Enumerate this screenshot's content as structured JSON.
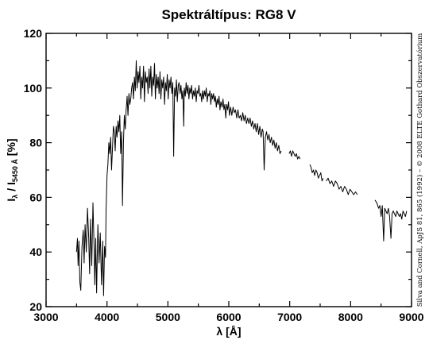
{
  "chart_data": {
    "type": "line",
    "title": "Spektráltípus: RG8 V",
    "xlabel": {
      "main": "λ [",
      "unit": "Å",
      "close": "]"
    },
    "ylabel": {
      "base": "I",
      "sub_lambda": "λ",
      "sep": " / I",
      "sub_ref": "5450 Å",
      "unit": " [%]"
    },
    "xlim": [
      3000,
      9000
    ],
    "ylim": [
      20,
      120
    ],
    "x_ticks": [
      3000,
      4000,
      5000,
      6000,
      7000,
      8000,
      9000
    ],
    "y_ticks": [
      20,
      40,
      60,
      80,
      100,
      120
    ],
    "x_minor_step": 500,
    "y_minor_step": 10,
    "grid": false,
    "credit": "Silva and Cornell, ApJS 81, 865 (1992) – © 2008 ELTE Gothard Obszervatórium",
    "series": [
      {
        "color": "#000000",
        "segments": [
          {
            "x": [
              3500,
              3515,
              3525,
              3540,
              3555,
              3570,
              3590,
              3610,
              3625,
              3640,
              3660,
              3680,
              3700,
              3715,
              3730,
              3750,
              3770,
              3790,
              3800,
              3815,
              3830,
              3850,
              3870,
              3890,
              3910,
              3930,
              3945,
              3960,
              3975,
              3985,
              4000,
              4015,
              4030,
              4045,
              4060,
              4075,
              4090,
              4105,
              4120,
              4135,
              4150,
              4165,
              4180,
              4195,
              4210,
              4225,
              4240,
              4255,
              4270,
              4285,
              4300,
              4315,
              4330,
              4345,
              4360,
              4375,
              4390,
              4405,
              4420,
              4435,
              4450,
              4465,
              4480,
              4495,
              4510,
              4525,
              4540,
              4555,
              4570,
              4585,
              4600,
              4615,
              4630,
              4645,
              4660,
              4675,
              4690,
              4705,
              4720,
              4735,
              4750,
              4765,
              4780,
              4795,
              4810,
              4825,
              4840,
              4855,
              4870,
              4885,
              4900,
              4915,
              4930,
              4945,
              4960,
              4975,
              4990,
              5005,
              5020,
              5035,
              5050,
              5065,
              5080,
              5095,
              5110,
              5125,
              5140,
              5155,
              5170,
              5183,
              5200,
              5215,
              5230,
              5245,
              5260,
              5270,
              5285,
              5300,
              5315,
              5330,
              5345,
              5360,
              5375,
              5390,
              5405,
              5420,
              5435,
              5450,
              5465,
              5480,
              5495,
              5510,
              5525,
              5540,
              5555,
              5570,
              5585,
              5600,
              5615,
              5630,
              5645,
              5660,
              5675,
              5690,
              5705,
              5720,
              5735,
              5750,
              5765,
              5780,
              5795,
              5810,
              5825,
              5840,
              5855,
              5870,
              5890,
              5905,
              5920,
              5935,
              5950,
              5965,
              5980,
              5995,
              6010,
              6030,
              6050,
              6070,
              6090,
              6110,
              6130,
              6150,
              6170,
              6190,
              6210,
              6230,
              6250,
              6270,
              6290,
              6310,
              6330,
              6350,
              6370,
              6390,
              6410,
              6430,
              6450,
              6470,
              6490,
              6510,
              6530,
              6550,
              6563,
              6580,
              6600,
              6620,
              6640,
              6660,
              6680,
              6700,
              6720,
              6740,
              6760,
              6780,
              6800,
              6820,
              6840,
              6860
            ],
            "y": [
              40,
              45,
              35,
              44,
              29,
              26,
              42,
              48,
              36,
              50,
              40,
              56,
              45,
              32,
              52,
              35,
              58,
              40,
              28,
              45,
              25,
              50,
              36,
              47,
              28,
              44,
              24,
              42,
              38,
              55,
              68,
              72,
              80,
              76,
              82,
              70,
              78,
              86,
              84,
              77,
              86,
              82,
              88,
              84,
              90,
              76,
              84,
              57,
              80,
              90,
              85,
              92,
              97,
              90,
              98,
              94,
              96,
              100,
              102,
              96,
              104,
              99,
              110,
              100,
              106,
              102,
              108,
              96,
              104,
              100,
              108,
              95,
              106,
              102,
              104,
              98,
              107,
              100,
              108,
              97,
              104,
              101,
              109,
              96,
              105,
              100,
              104,
              98,
              106,
              96,
              103,
              100,
              104,
              94,
              102,
              99,
              105,
              96,
              103,
              100,
              104,
              98,
              102,
              75,
              100,
              97,
              103,
              95,
              101,
              102,
              98,
              101,
              96,
              99,
              86,
              100,
              97,
              102,
              98,
              101,
              96,
              100,
              98,
              101,
              96,
              99,
              97,
              100,
              95,
              99,
              98,
              101,
              97,
              98,
              95,
              99,
              96,
              99,
              97,
              100,
              95,
              98,
              97,
              99,
              94,
              98,
              96,
              98,
              95,
              97,
              93,
              96,
              94,
              97,
              92,
              95,
              93,
              96,
              92,
              94,
              89,
              94,
              92,
              95,
              90,
              93,
              90,
              93,
              91,
              92,
              89,
              92,
              89,
              90,
              88,
              91,
              88,
              90,
              87,
              89,
              87,
              89,
              86,
              88,
              85,
              87,
              84,
              87,
              83,
              86,
              82,
              85,
              84,
              70,
              82,
              84,
              81,
              83,
              80,
              82,
              79,
              81,
              78,
              80,
              77,
              79,
              76,
              77
            ]
          },
          {
            "x": [
              6990,
              7010,
              7030,
              7050,
              7070,
              7090,
              7110,
              7130,
              7150,
              7170
            ],
            "y": [
              76,
              77,
              75,
              77,
              76,
              75,
              76,
              74,
              75,
              74
            ]
          },
          {
            "x": [
              7330,
              7350,
              7370,
              7390,
              7410,
              7430,
              7450,
              7470,
              7490,
              7510,
              7530,
              7550
            ],
            "y": [
              72,
              71,
              69,
              70,
              68,
              70,
              69,
              67,
              68,
              69,
              66,
              67
            ]
          },
          {
            "x": [
              7600,
              7630,
              7660,
              7690,
              7720,
              7750,
              7780,
              7810,
              7840,
              7870,
              7900,
              7930,
              7960,
              7990,
              8020,
              8050,
              8080,
              8110
            ],
            "y": [
              66,
              67,
              65,
              66,
              64,
              66,
              65,
              63,
              64,
              62,
              64,
              63,
              61,
              63,
              62,
              61,
              62,
              61
            ]
          },
          {
            "x": [
              8400,
              8430,
              8460,
              8480,
              8500,
              8520,
              8542,
              8560,
              8580,
              8600,
              8620,
              8640,
              8662,
              8680,
              8700,
              8720,
              8740,
              8760,
              8780,
              8800,
              8820,
              8840,
              8860,
              8880,
              8900,
              8920
            ],
            "y": [
              59,
              58,
              56,
              57,
              53,
              57,
              44,
              56,
              55,
              54,
              56,
              53,
              45,
              54,
              55,
              54,
              53,
              55,
              54,
              53,
              54,
              52,
              55,
              54,
              53,
              55
            ]
          }
        ]
      }
    ]
  }
}
